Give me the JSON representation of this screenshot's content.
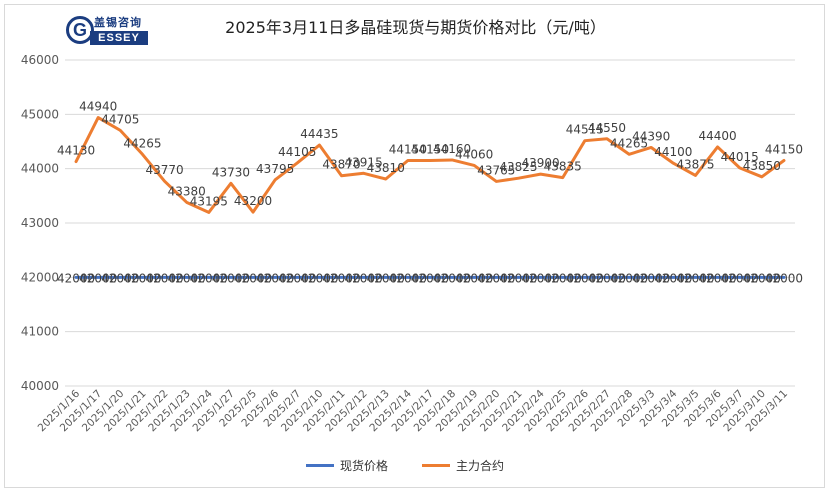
{
  "title": "2025年3月11日多晶硅现货与期货价格对比（元/吨）",
  "logo": {
    "top_text": "盖锡咨询",
    "letter": "G",
    "bar_text": "ESSEY"
  },
  "colors": {
    "spot": "#4472c4",
    "futures": "#ed7d31",
    "grid": "#d9d9d9",
    "axis_text": "#595959"
  },
  "chart_data": {
    "type": "line",
    "title": "2025年3月11日多晶硅现货与期货价格对比（元/吨）",
    "ylim": [
      40000,
      46000
    ],
    "yticks": [
      40000,
      41000,
      42000,
      43000,
      44000,
      45000,
      46000
    ],
    "grid": true,
    "legend_position": "bottom",
    "categories": [
      "2025/1/16",
      "2025/1/17",
      "2025/1/20",
      "2025/1/21",
      "2025/1/22",
      "2025/1/23",
      "2025/1/24",
      "2025/1/27",
      "2025/2/5",
      "2025/2/6",
      "2025/2/7",
      "2025/2/10",
      "2025/2/11",
      "2025/2/12",
      "2025/2/13",
      "2025/2/14",
      "2025/2/17",
      "2025/2/18",
      "2025/2/19",
      "2025/2/20",
      "2025/2/21",
      "2025/2/24",
      "2025/2/25",
      "2025/2/26",
      "2025/2/27",
      "2025/2/28",
      "2025/3/3",
      "2025/3/4",
      "2025/3/5",
      "2025/3/6",
      "2025/3/7",
      "2025/3/10",
      "2025/3/11"
    ],
    "series": [
      {
        "name": "现货价格",
        "values": [
          42000,
          42000,
          42000,
          42000,
          42000,
          42000,
          42000,
          42000,
          42000,
          42000,
          42000,
          42000,
          42000,
          42000,
          42000,
          42000,
          42000,
          42000,
          42000,
          42000,
          42000,
          42000,
          42000,
          42000,
          42000,
          42000,
          42000,
          42000,
          42000,
          42000,
          42000,
          42000,
          42000
        ]
      },
      {
        "name": "主力合约",
        "values": [
          44130,
          44940,
          44705,
          44265,
          43770,
          43380,
          43195,
          43730,
          43200,
          43795,
          44105,
          44435,
          43870,
          43915,
          43810,
          44150,
          44150,
          44160,
          44060,
          43765,
          43825,
          43900,
          43835,
          44515,
          44550,
          44265,
          44390,
          44100,
          43875,
          44400,
          44015,
          43850,
          44150
        ]
      }
    ]
  }
}
